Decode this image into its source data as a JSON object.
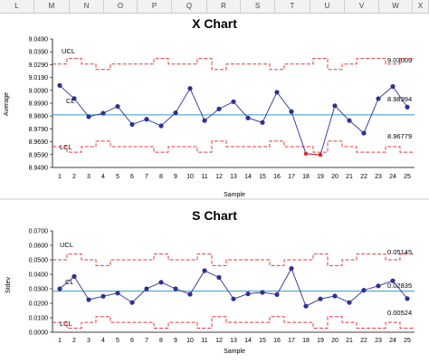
{
  "spreadsheet": {
    "columns": [
      "L",
      "M",
      "N",
      "O",
      "P",
      "Q",
      "R",
      "S",
      "T",
      "U",
      "V",
      "W",
      "X"
    ]
  },
  "colors": {
    "data_line": "#2e3192",
    "center_line": "#3399cc",
    "limit_line": "#e83a3a",
    "out_of_control_point": "#e32020"
  },
  "chart_data": [
    {
      "type": "line",
      "title": "X Chart",
      "xlabel": "Sample",
      "ylabel": "Average",
      "x": [
        1,
        2,
        3,
        4,
        5,
        6,
        7,
        8,
        9,
        10,
        11,
        12,
        13,
        14,
        15,
        16,
        17,
        18,
        19,
        20,
        21,
        22,
        23,
        24,
        25
      ],
      "values": [
        9.0128,
        9.0026,
        8.9885,
        8.9912,
        8.9965,
        8.9825,
        8.9865,
        8.9814,
        8.9915,
        9.0105,
        8.9855,
        8.9945,
        9.0002,
        8.9875,
        8.984,
        9.0075,
        8.9925,
        8.9597,
        8.9588,
        8.997,
        8.9855,
        8.9757,
        9.0025,
        9.012,
        8.996
      ],
      "out_of_control": [
        18,
        19
      ],
      "ylim": [
        8.949,
        9.049
      ],
      "yticks": [
        "8.9490",
        "8.9590",
        "8.9690",
        "8.9790",
        "8.9890",
        "8.9990",
        "9.0090",
        "9.0190",
        "9.0290",
        "9.0390",
        "9.0490"
      ],
      "center_line": 8.98994,
      "limit_step": [
        0,
        1,
        0,
        -1,
        0,
        0,
        0,
        1,
        0,
        0,
        1,
        -1,
        0,
        0,
        0,
        -1,
        0,
        0,
        1,
        -1,
        0,
        1,
        1,
        0,
        1
      ],
      "ucl_base": 9.0295,
      "lcl_base": 8.9652,
      "limit_step_size": 0.0043,
      "labels": {
        "ucl": "UCL",
        "cl": "CL",
        "lcl": "LCL"
      },
      "annotations": {
        "ucl_value": "9.03009",
        "cl_value": "8.98994",
        "lcl_value": "8.96779"
      }
    },
    {
      "type": "line",
      "title": "S Chart",
      "xlabel": "Sample",
      "ylabel": "Stdev",
      "x": [
        1,
        2,
        3,
        4,
        5,
        6,
        7,
        8,
        9,
        10,
        11,
        12,
        13,
        14,
        15,
        16,
        17,
        18,
        19,
        20,
        21,
        22,
        23,
        24,
        25
      ],
      "values": [
        0.03,
        0.0385,
        0.0225,
        0.0248,
        0.027,
        0.0205,
        0.03,
        0.0345,
        0.03,
        0.0262,
        0.0425,
        0.0378,
        0.023,
        0.0265,
        0.0275,
        0.026,
        0.044,
        0.018,
        0.023,
        0.025,
        0.0205,
        0.029,
        0.032,
        0.0355,
        0.0232
      ],
      "out_of_control": [],
      "ylim": [
        0.0,
        0.07
      ],
      "yticks": [
        "0.0000",
        "0.0100",
        "0.0200",
        "0.0300",
        "0.0400",
        "0.0500",
        "0.0600",
        "0.0700"
      ],
      "center_line": 0.02835,
      "limit_step": [
        0,
        1,
        0,
        -1,
        0,
        0,
        0,
        1,
        0,
        0,
        1,
        -1,
        0,
        0,
        0,
        -1,
        0,
        0,
        1,
        -1,
        0,
        1,
        1,
        0,
        1
      ],
      "ucl_base": 0.05,
      "lcl_base": 0.0068,
      "limit_step_size": 0.004,
      "labels": {
        "ucl": "UCL",
        "cl": "CL",
        "lcl": "LCL"
      },
      "annotations": {
        "ucl_value": "0.05145",
        "cl_value": "0.02835",
        "lcl_value": "0.00524"
      }
    }
  ]
}
